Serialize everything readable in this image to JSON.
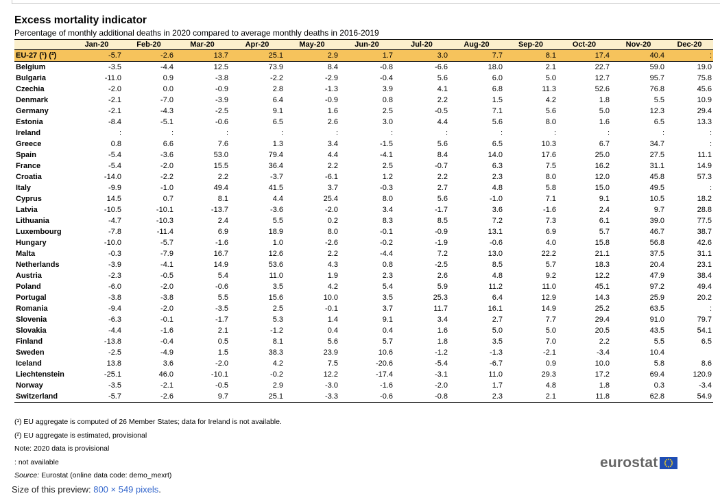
{
  "title": "Excess mortality indicator",
  "subtitle": "Percentage of monthly additional deaths in 2020 compared to average monthly deaths in 2016-2019",
  "columns": [
    "Jan-20",
    "Feb-20",
    "Mar-20",
    "Apr-20",
    "May-20",
    "Jun-20",
    "Jul-20",
    "Aug-20",
    "Sep-20",
    "Oct-20",
    "Nov-20",
    "Dec-20"
  ],
  "eu_row": {
    "name": "EU-27 (¹) (²)",
    "values": [
      "-5.7",
      "-2.6",
      "13.7",
      "25.1",
      "2.9",
      "1.7",
      "3.0",
      "7.7",
      "8.1",
      "17.4",
      "40.4",
      ":"
    ]
  },
  "rows": [
    {
      "name": "Belgium",
      "values": [
        "-3.5",
        "-4.4",
        "12.5",
        "73.9",
        "8.4",
        "-0.8",
        "-6.6",
        "18.0",
        "2.1",
        "22.7",
        "59.0",
        "19.0"
      ]
    },
    {
      "name": "Bulgaria",
      "values": [
        "-11.0",
        "0.9",
        "-3.8",
        "-2.2",
        "-2.9",
        "-0.4",
        "5.6",
        "6.0",
        "5.0",
        "12.7",
        "95.7",
        "75.8"
      ]
    },
    {
      "name": "Czechia",
      "values": [
        "-2.0",
        "0.0",
        "-0.9",
        "2.8",
        "-1.3",
        "3.9",
        "4.1",
        "6.8",
        "11.3",
        "52.6",
        "76.8",
        "45.6"
      ]
    },
    {
      "name": "Denmark",
      "values": [
        "-2.1",
        "-7.0",
        "-3.9",
        "6.4",
        "-0.9",
        "0.8",
        "2.2",
        "1.5",
        "4.2",
        "1.8",
        "5.5",
        "10.9"
      ]
    },
    {
      "name": "Germany",
      "values": [
        "-2.1",
        "-4.3",
        "-2.5",
        "9.1",
        "1.6",
        "2.5",
        "-0.5",
        "7.1",
        "5.6",
        "5.0",
        "12.3",
        "29.4"
      ]
    },
    {
      "name": "Estonia",
      "values": [
        "-8.4",
        "-5.1",
        "-0.6",
        "6.5",
        "2.6",
        "3.0",
        "4.4",
        "5.6",
        "8.0",
        "1.6",
        "6.5",
        "13.3"
      ]
    },
    {
      "name": "Ireland",
      "values": [
        ":",
        ":",
        ":",
        ":",
        ":",
        ":",
        ":",
        ":",
        ":",
        ":",
        ":",
        ":"
      ]
    },
    {
      "name": "Greece",
      "values": [
        "0.8",
        "6.6",
        "7.6",
        "1.3",
        "3.4",
        "-1.5",
        "5.6",
        "6.5",
        "10.3",
        "6.7",
        "34.7",
        ":"
      ]
    },
    {
      "name": "Spain",
      "values": [
        "-5.4",
        "-3.6",
        "53.0",
        "79.4",
        "4.4",
        "-4.1",
        "8.4",
        "14.0",
        "17.6",
        "25.0",
        "27.5",
        "11.1"
      ]
    },
    {
      "name": "France",
      "values": [
        "-5.4",
        "-2.0",
        "15.5",
        "36.4",
        "2.2",
        "2.5",
        "-0.7",
        "6.3",
        "7.5",
        "16.2",
        "31.1",
        "14.9"
      ]
    },
    {
      "name": "Croatia",
      "values": [
        "-14.0",
        "-2.2",
        "2.2",
        "-3.7",
        "-6.1",
        "1.2",
        "2.2",
        "2.3",
        "8.0",
        "12.0",
        "45.8",
        "57.3"
      ]
    },
    {
      "name": "Italy",
      "values": [
        "-9.9",
        "-1.0",
        "49.4",
        "41.5",
        "3.7",
        "-0.3",
        "2.7",
        "4.8",
        "5.8",
        "15.0",
        "49.5",
        ":"
      ]
    },
    {
      "name": "Cyprus",
      "values": [
        "14.5",
        "0.7",
        "8.1",
        "4.4",
        "25.4",
        "8.0",
        "5.6",
        "-1.0",
        "7.1",
        "9.1",
        "10.5",
        "18.2"
      ]
    },
    {
      "name": "Latvia",
      "values": [
        "-10.5",
        "-10.1",
        "-13.7",
        "-3.6",
        "-2.0",
        "3.4",
        "-1.7",
        "3.6",
        "-1.6",
        "2.4",
        "9.7",
        "28.8"
      ]
    },
    {
      "name": "Lithuania",
      "values": [
        "-4.7",
        "-10.3",
        "2.4",
        "5.5",
        "0.2",
        "8.3",
        "8.5",
        "7.2",
        "7.3",
        "6.1",
        "39.0",
        "77.5"
      ]
    },
    {
      "name": "Luxembourg",
      "values": [
        "-7.8",
        "-11.4",
        "6.9",
        "18.9",
        "8.0",
        "-0.1",
        "-0.9",
        "13.1",
        "6.9",
        "5.7",
        "46.7",
        "38.7"
      ]
    },
    {
      "name": "Hungary",
      "values": [
        "-10.0",
        "-5.7",
        "-1.6",
        "1.0",
        "-2.6",
        "-0.2",
        "-1.9",
        "-0.6",
        "4.0",
        "15.8",
        "56.8",
        "42.6"
      ]
    },
    {
      "name": "Malta",
      "values": [
        "-0.3",
        "-7.9",
        "16.7",
        "12.6",
        "2.2",
        "-4.4",
        "7.2",
        "13.0",
        "22.2",
        "21.1",
        "37.5",
        "31.1"
      ]
    },
    {
      "name": "Netherlands",
      "values": [
        "-3.9",
        "-4.1",
        "14.9",
        "53.6",
        "4.3",
        "0.8",
        "-2.5",
        "8.5",
        "5.7",
        "18.3",
        "20.4",
        "23.1"
      ]
    },
    {
      "name": "Austria",
      "values": [
        "-2.3",
        "-0.5",
        "5.4",
        "11.0",
        "1.9",
        "2.3",
        "2.6",
        "4.8",
        "9.2",
        "12.2",
        "47.9",
        "38.4"
      ]
    },
    {
      "name": "Poland",
      "values": [
        "-6.0",
        "-2.0",
        "-0.6",
        "3.5",
        "4.2",
        "5.4",
        "5.9",
        "11.2",
        "11.0",
        "45.1",
        "97.2",
        "49.4"
      ]
    },
    {
      "name": "Portugal",
      "values": [
        "-3.8",
        "-3.8",
        "5.5",
        "15.6",
        "10.0",
        "3.5",
        "25.3",
        "6.4",
        "12.9",
        "14.3",
        "25.9",
        "20.2"
      ]
    },
    {
      "name": "Romania",
      "values": [
        "-9.4",
        "-2.0",
        "-3.5",
        "2.5",
        "-0.1",
        "3.7",
        "11.7",
        "16.1",
        "14.9",
        "25.2",
        "63.5",
        ":"
      ]
    },
    {
      "name": "Slovenia",
      "values": [
        "-6.3",
        "-0.1",
        "-1.7",
        "5.3",
        "1.4",
        "9.1",
        "3.4",
        "2.7",
        "7.7",
        "29.4",
        "91.0",
        "79.7"
      ]
    },
    {
      "name": "Slovakia",
      "values": [
        "-4.4",
        "-1.6",
        "2.1",
        "-1.2",
        "0.4",
        "0.4",
        "1.6",
        "5.0",
        "5.0",
        "20.5",
        "43.5",
        "54.1"
      ]
    },
    {
      "name": "Finland",
      "values": [
        "-13.8",
        "-0.4",
        "0.5",
        "8.1",
        "5.6",
        "5.7",
        "1.8",
        "3.5",
        "7.0",
        "2.2",
        "5.5",
        "6.5"
      ]
    },
    {
      "name": "Sweden",
      "values": [
        "-2.5",
        "-4.9",
        "1.5",
        "38.3",
        "23.9",
        "10.6",
        "-1.2",
        "-1.3",
        "-2.1",
        "-3.4",
        "10.4",
        ""
      ]
    },
    {
      "name": "Iceland",
      "values": [
        "13.8",
        "3.6",
        "-2.0",
        "4.2",
        "7.5",
        "-20.6",
        "-5.4",
        "-6.7",
        "0.9",
        "10.0",
        "5.8",
        "8.6"
      ]
    },
    {
      "name": "Liechtenstein",
      "values": [
        "-25.1",
        "46.0",
        "-10.1",
        "-0.2",
        "12.2",
        "-17.4",
        "-3.1",
        "11.0",
        "29.3",
        "17.2",
        "69.4",
        "120.9"
      ]
    },
    {
      "name": "Norway",
      "values": [
        "-3.5",
        "-2.1",
        "-0.5",
        "2.9",
        "-3.0",
        "-1.6",
        "-2.0",
        "1.7",
        "4.8",
        "1.8",
        "0.3",
        "-3.4"
      ]
    },
    {
      "name": "Switzerland",
      "values": [
        "-5.7",
        "-2.6",
        "9.7",
        "25.1",
        "-3.3",
        "-0.6",
        "-0.8",
        "2.3",
        "2.1",
        "11.8",
        "62.8",
        "54.9"
      ]
    }
  ],
  "notes": {
    "n1": "(¹) EU aggregate is computed of 26 Member States; data for Ireland is not available.",
    "n2": "(²) EU aggregate is estimated, provisional",
    "n3": "Note: 2020 data is provisional",
    "n4": ": not available",
    "source_label": "Source:",
    "source_text": " Eurostat (online data code: demo_mexrt)"
  },
  "logo_text": "eurostat",
  "preview": {
    "prefix": "Size of this preview: ",
    "link": "800 × 549 pixels",
    "suffix": "."
  },
  "colors": {
    "header_bg": "#fbefcc",
    "eu_row_bg": "#f6c35c",
    "logo_flag": "#1f4db3",
    "link": "#3366cc"
  }
}
